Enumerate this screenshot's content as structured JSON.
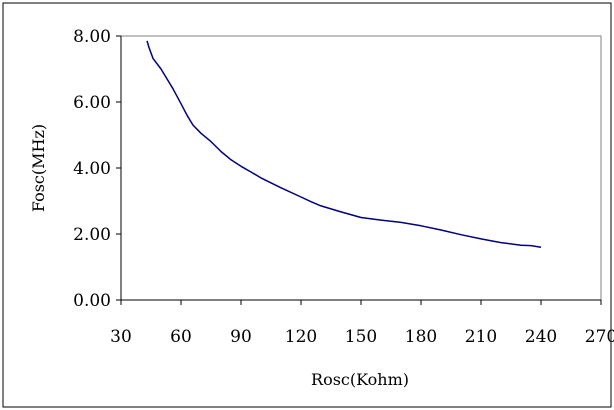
{
  "chart_data": {
    "type": "line",
    "xlabel": "Rosc(Kohm)",
    "ylabel": "Fosc(MHz)",
    "xlim": [
      30,
      270
    ],
    "ylim": [
      0,
      8
    ],
    "x_ticks": [
      30,
      60,
      90,
      120,
      150,
      180,
      210,
      240,
      270
    ],
    "y_ticks": [
      0,
      2,
      4,
      6,
      8
    ],
    "y_tick_labels": [
      "0.00",
      "2.00",
      "4.00",
      "6.00",
      "8.00"
    ],
    "x_tick_labels": [
      "30",
      "60",
      "90",
      "120",
      "150",
      "180",
      "210",
      "240",
      "270"
    ],
    "grid": false,
    "legend": "none",
    "line_color": "#000080",
    "series": [
      {
        "x": [
          43,
          44,
          46,
          50,
          53,
          56,
          60,
          63,
          66,
          70,
          75,
          80,
          85,
          90,
          95,
          100,
          110,
          120,
          125,
          130,
          140,
          150,
          160,
          170,
          180,
          190,
          200,
          210,
          220,
          230,
          235,
          240
        ],
        "y": [
          7.85,
          7.65,
          7.32,
          7.0,
          6.7,
          6.4,
          5.95,
          5.6,
          5.3,
          5.05,
          4.8,
          4.5,
          4.25,
          4.05,
          3.88,
          3.7,
          3.4,
          3.12,
          2.98,
          2.85,
          2.67,
          2.5,
          2.42,
          2.35,
          2.25,
          2.12,
          1.98,
          1.85,
          1.74,
          1.66,
          1.65,
          1.6
        ]
      }
    ]
  }
}
